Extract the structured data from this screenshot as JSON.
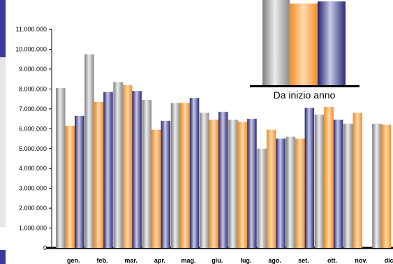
{
  "chart_data": {
    "type": "bar",
    "categories": [
      "gen.",
      "feb.",
      "mar.",
      "apr.",
      "mag.",
      "giu.",
      "lug.",
      "ago.",
      "set.",
      "ott.",
      "nov.",
      "dic."
    ],
    "series": [
      {
        "color": "#a9a9a9",
        "values": [
          8050000,
          9750000,
          8350000,
          7450000,
          7300000,
          6800000,
          6450000,
          5000000,
          5600000,
          6700000,
          6250000,
          6250000
        ]
      },
      {
        "color": "#f59b36",
        "values": [
          6150000,
          7350000,
          8200000,
          5950000,
          7300000,
          6450000,
          6350000,
          5950000,
          5500000,
          7100000,
          6800000,
          6200000
        ]
      },
      {
        "color": "#2e2e7a",
        "values": [
          6650000,
          7850000,
          7900000,
          6400000,
          7550000,
          6850000,
          6500000,
          5500000,
          7050000,
          6450000,
          null,
          null
        ]
      }
    ],
    "y_ticks": [
      "0",
      "1.000.000",
      "2.000.000",
      "3.000.000",
      "4.000.000",
      "5.000.000",
      "6.000.000",
      "7.000.000",
      "8.000.000",
      "9.000.000",
      "10.000.000",
      "11.000.000"
    ],
    "ylim": [
      0,
      11000000
    ],
    "inset": {
      "label": "Da inizio anno",
      "colors": [
        "#a9a9a9",
        "#f59b36",
        "#2e2e7a"
      ]
    }
  },
  "decor": {
    "strip_colors": [
      "#3a3aa0",
      "#e6e6e6",
      "#3a3aa0"
    ]
  }
}
